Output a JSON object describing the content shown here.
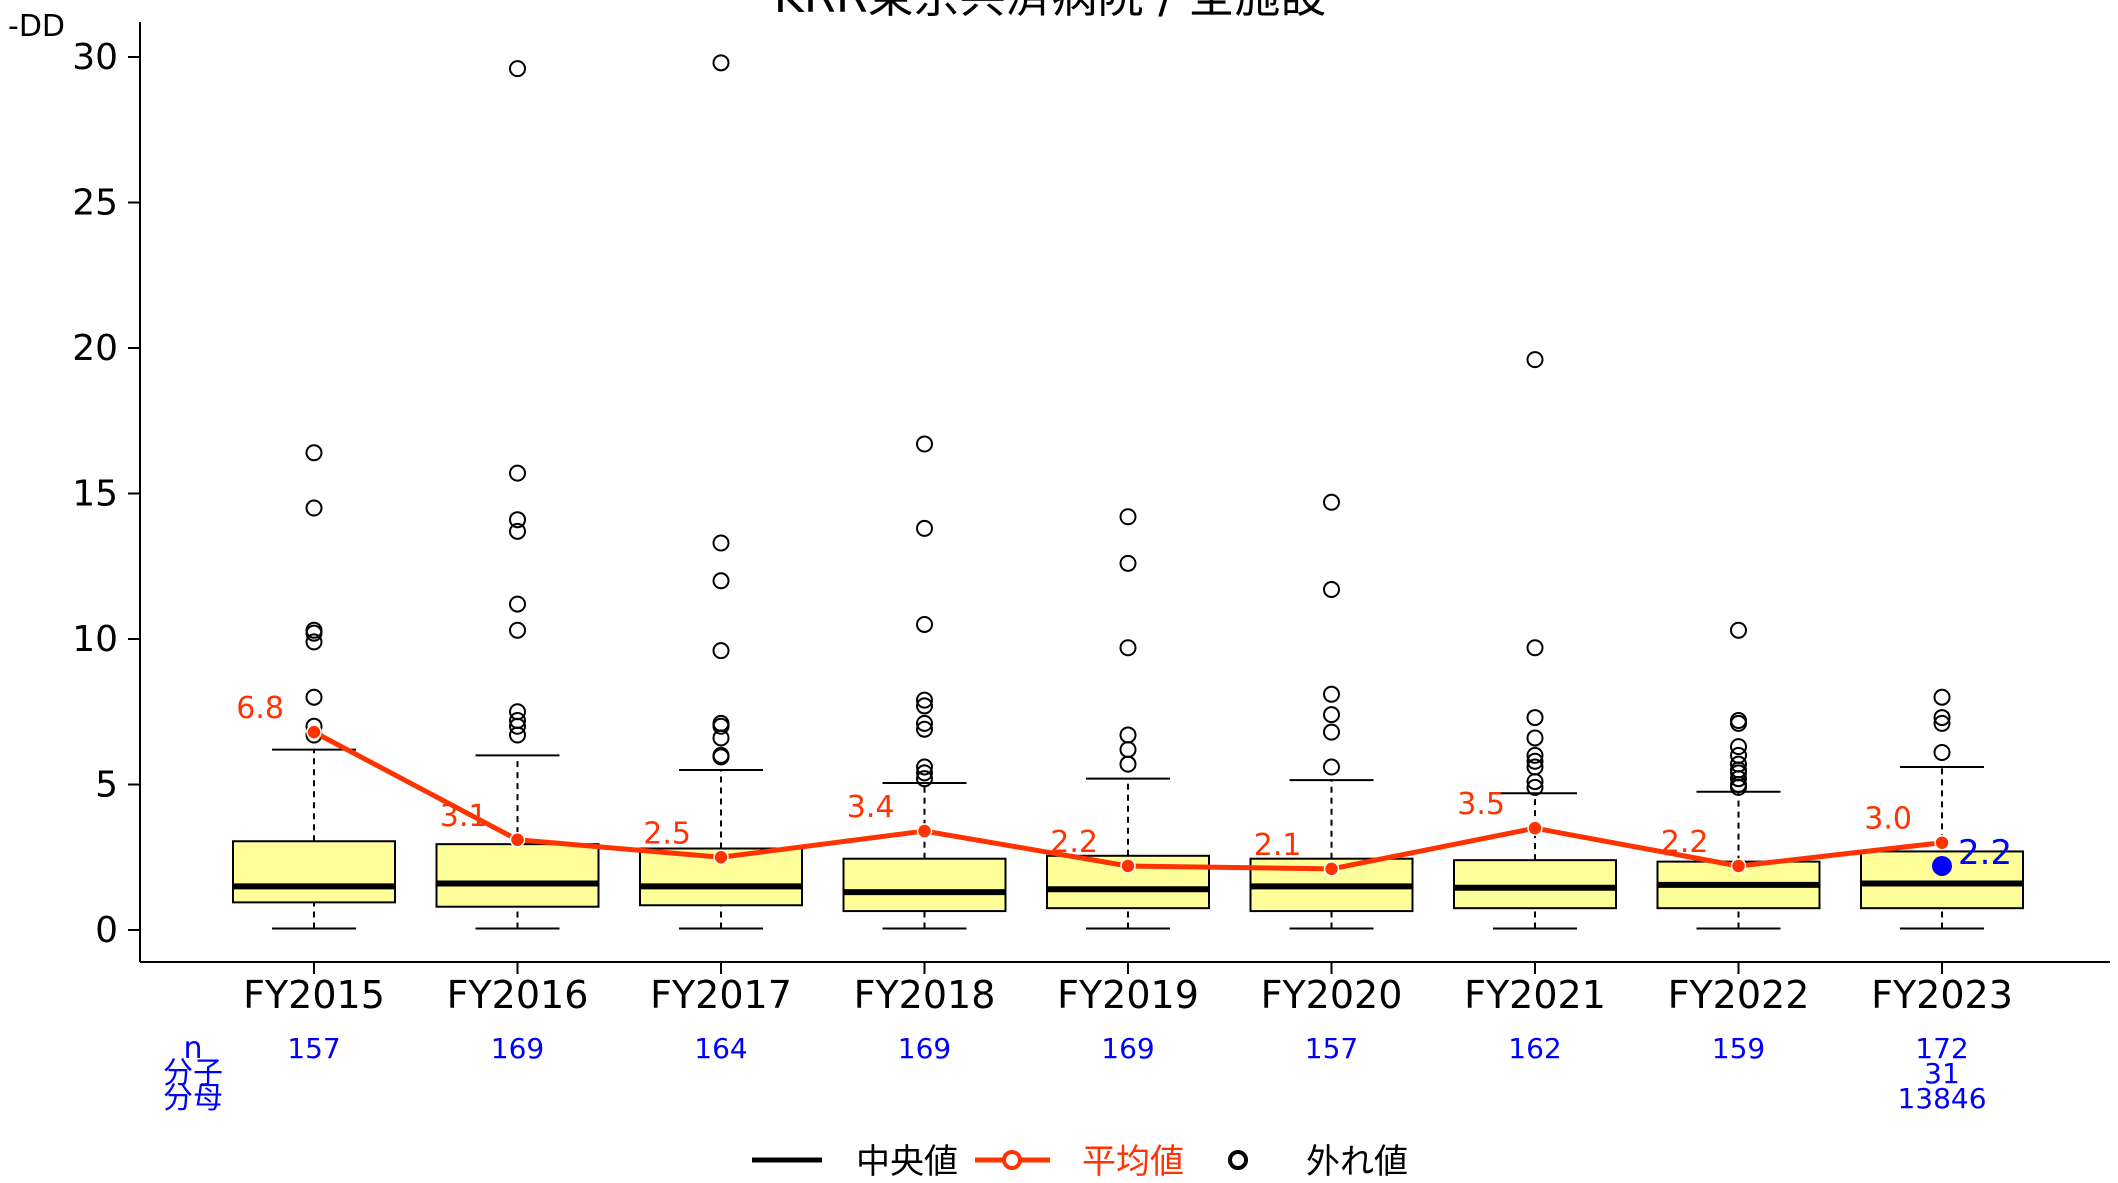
{
  "chart_data": {
    "type": "box",
    "title": "KRR東京共済病院 / 全施設",
    "ylabel": "-DD",
    "ylim": [
      0,
      31
    ],
    "yticks": [
      0,
      5,
      10,
      15,
      20,
      25,
      30
    ],
    "grid": false,
    "categories": [
      "FY2015",
      "FY2016",
      "FY2017",
      "FY2018",
      "FY2019",
      "FY2020",
      "FY2021",
      "FY2022",
      "FY2023"
    ],
    "boxes": [
      {
        "whisker_low": 0.05,
        "q1": 0.95,
        "median": 1.5,
        "q3": 3.05,
        "whisker_high": 6.2,
        "mean": 6.8,
        "mean_label": "6.8",
        "n": "157",
        "outliers": [
          16.4,
          14.5,
          10.3,
          10.2,
          9.9,
          8.0,
          7.0,
          6.7
        ]
      },
      {
        "whisker_low": 0.05,
        "q1": 0.8,
        "median": 1.6,
        "q3": 2.95,
        "whisker_high": 6.0,
        "mean": 3.1,
        "mean_label": "3.1",
        "n": "169",
        "outliers": [
          29.6,
          15.7,
          14.1,
          13.7,
          11.2,
          10.3,
          7.5,
          7.2,
          7.0,
          6.7
        ]
      },
      {
        "whisker_low": 0.05,
        "q1": 0.85,
        "median": 1.5,
        "q3": 2.8,
        "whisker_high": 5.5,
        "mean": 2.5,
        "mean_label": "2.5",
        "n": "164",
        "outliers": [
          29.8,
          13.3,
          12.0,
          9.6,
          7.1,
          7.0,
          6.6,
          6.0,
          5.95
        ]
      },
      {
        "whisker_low": 0.05,
        "q1": 0.65,
        "median": 1.3,
        "q3": 2.45,
        "whisker_high": 5.05,
        "mean": 3.4,
        "mean_label": "3.4",
        "n": "169",
        "outliers": [
          16.7,
          13.8,
          10.5,
          7.9,
          7.7,
          7.1,
          6.9,
          5.6,
          5.4,
          5.2
        ]
      },
      {
        "whisker_low": 0.05,
        "q1": 0.75,
        "median": 1.4,
        "q3": 2.55,
        "whisker_high": 5.2,
        "mean": 2.2,
        "mean_label": "2.2",
        "n": "169",
        "outliers": [
          14.2,
          12.6,
          9.7,
          6.7,
          6.2,
          5.7
        ]
      },
      {
        "whisker_low": 0.05,
        "q1": 0.65,
        "median": 1.5,
        "q3": 2.45,
        "whisker_high": 5.15,
        "mean": 2.1,
        "mean_label": "2.1",
        "n": "157",
        "outliers": [
          14.7,
          11.7,
          8.1,
          7.4,
          6.8,
          5.6
        ]
      },
      {
        "whisker_low": 0.05,
        "q1": 0.75,
        "median": 1.45,
        "q3": 2.4,
        "whisker_high": 4.7,
        "mean": 3.5,
        "mean_label": "3.5",
        "n": "162",
        "outliers": [
          19.6,
          9.7,
          7.3,
          6.6,
          6.0,
          5.8,
          5.6,
          5.1,
          4.9
        ]
      },
      {
        "whisker_low": 0.05,
        "q1": 0.75,
        "median": 1.55,
        "q3": 2.35,
        "whisker_high": 4.75,
        "mean": 2.2,
        "mean_label": "2.2",
        "n": "159",
        "outliers": [
          10.3,
          7.2,
          7.1,
          6.3,
          6.0,
          5.7,
          5.5,
          5.4,
          5.2,
          5.0,
          4.9
        ]
      },
      {
        "whisker_low": 0.05,
        "q1": 0.75,
        "median": 1.6,
        "q3": 2.7,
        "whisker_high": 5.6,
        "mean": 3.0,
        "mean_label": "3.0",
        "n": "172",
        "numerator": "31",
        "denominator": "13846",
        "outliers": [
          8.0,
          7.3,
          7.1,
          6.1
        ],
        "hospital_value": 2.2,
        "hospital_label": "2.2"
      }
    ],
    "row_labels": {
      "n": "n",
      "numerator": "分子",
      "denominator": "分母"
    },
    "legend": {
      "placement": "bottom",
      "entries": [
        {
          "label": "中央値",
          "kind": "median"
        },
        {
          "label": "平均値",
          "kind": "mean"
        },
        {
          "label": "外れ値",
          "kind": "outlier"
        }
      ]
    },
    "colors": {
      "box_fill": "#ffff99",
      "box_stroke": "#000000",
      "mean_line": "#ff3300",
      "mean_label": "#ff3300",
      "hospital": "#0000ff",
      "count_text": "#0000ff",
      "axis": "#000000"
    }
  }
}
